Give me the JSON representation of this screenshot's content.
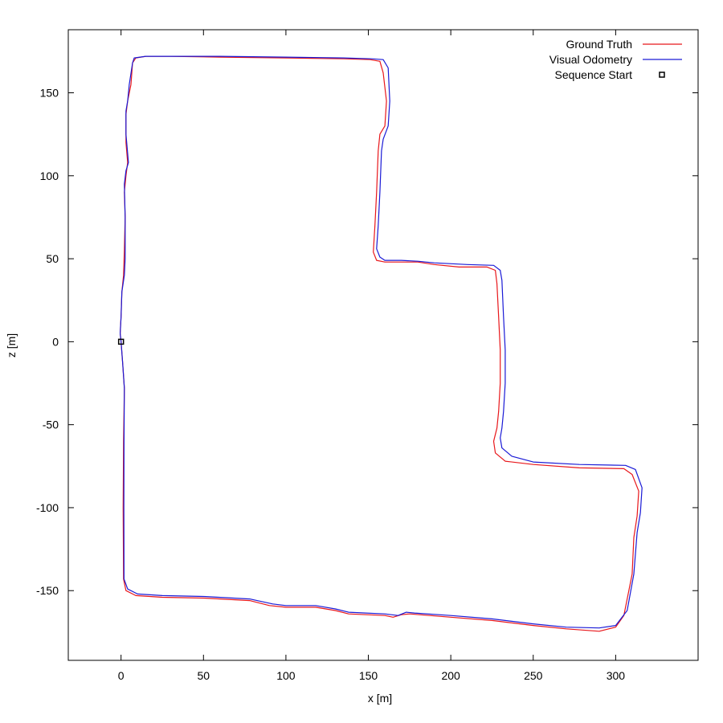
{
  "chart_data": {
    "type": "line",
    "title": "",
    "xlabel": "x [m]",
    "ylabel": "z [m]",
    "xlim": [
      -32,
      350
    ],
    "ylim": [
      -192,
      188
    ],
    "x_ticks": [
      0,
      50,
      100,
      150,
      200,
      250,
      300
    ],
    "y_ticks": [
      150,
      100,
      50,
      0,
      -50,
      -100,
      -150
    ],
    "grid": false,
    "legend_position": "top-right",
    "series": [
      {
        "name": "Ground Truth",
        "color": "#e8171b",
        "points": [
          [
            0,
            0
          ],
          [
            1,
            -13
          ],
          [
            2,
            -28
          ],
          [
            1.5,
            -60
          ],
          [
            1.3,
            -100
          ],
          [
            1.5,
            -143
          ],
          [
            3,
            -150
          ],
          [
            9,
            -153
          ],
          [
            25,
            -154
          ],
          [
            50,
            -154.5
          ],
          [
            78,
            -156
          ],
          [
            90,
            -159
          ],
          [
            100,
            -160
          ],
          [
            118,
            -160
          ],
          [
            130,
            -162
          ],
          [
            138,
            -164
          ],
          [
            160,
            -165
          ],
          [
            165,
            -166
          ],
          [
            170,
            -164.5
          ],
          [
            175,
            -164
          ],
          [
            200,
            -166
          ],
          [
            225,
            -168
          ],
          [
            250,
            -171
          ],
          [
            270,
            -173
          ],
          [
            290,
            -174.5
          ],
          [
            300,
            -172
          ],
          [
            305,
            -165
          ],
          [
            310,
            -140
          ],
          [
            311,
            -118
          ],
          [
            313,
            -105
          ],
          [
            314,
            -90
          ],
          [
            310,
            -80
          ],
          [
            305,
            -76.5
          ],
          [
            278,
            -76
          ],
          [
            250,
            -74
          ],
          [
            233,
            -72
          ],
          [
            227,
            -67
          ],
          [
            226,
            -60
          ],
          [
            228,
            -52
          ],
          [
            229,
            -42
          ],
          [
            230,
            -25
          ],
          [
            230,
            -5
          ],
          [
            229,
            15
          ],
          [
            228,
            35
          ],
          [
            227,
            43
          ],
          [
            222,
            45
          ],
          [
            205,
            45
          ],
          [
            190,
            46.5
          ],
          [
            180,
            48
          ],
          [
            170,
            48
          ],
          [
            160,
            48
          ],
          [
            155,
            49
          ],
          [
            153,
            54
          ],
          [
            154,
            70
          ],
          [
            155,
            90
          ],
          [
            156,
            115
          ],
          [
            157,
            125
          ],
          [
            160,
            130
          ],
          [
            161,
            145
          ],
          [
            159,
            162
          ],
          [
            157,
            169
          ],
          [
            151,
            170
          ],
          [
            135,
            170.5
          ],
          [
            100,
            171
          ],
          [
            60,
            171.5
          ],
          [
            30,
            172
          ],
          [
            15,
            172
          ],
          [
            9,
            171
          ],
          [
            7,
            168
          ],
          [
            6,
            155
          ],
          [
            4,
            145
          ],
          [
            3,
            137
          ],
          [
            3,
            120
          ],
          [
            4,
            108
          ],
          [
            3,
            100
          ],
          [
            2,
            90
          ],
          [
            2.5,
            75
          ],
          [
            2,
            55
          ],
          [
            1.5,
            40
          ],
          [
            0.5,
            30
          ],
          [
            0,
            15
          ],
          [
            -0.5,
            5
          ],
          [
            0,
            0
          ]
        ]
      },
      {
        "name": "Visual Odometry",
        "color": "#1a1ad6",
        "points": [
          [
            0,
            0
          ],
          [
            1,
            -13
          ],
          [
            2,
            -28
          ],
          [
            1.8,
            -60
          ],
          [
            1.7,
            -100
          ],
          [
            1.8,
            -143
          ],
          [
            4,
            -149
          ],
          [
            10,
            -152
          ],
          [
            25,
            -153
          ],
          [
            50,
            -153.5
          ],
          [
            78,
            -155
          ],
          [
            92,
            -158
          ],
          [
            100,
            -159
          ],
          [
            118,
            -159
          ],
          [
            130,
            -161
          ],
          [
            138,
            -163
          ],
          [
            160,
            -164
          ],
          [
            168,
            -165
          ],
          [
            173,
            -163
          ],
          [
            178,
            -163.5
          ],
          [
            200,
            -165
          ],
          [
            225,
            -167
          ],
          [
            250,
            -170
          ],
          [
            270,
            -172
          ],
          [
            290,
            -172.5
          ],
          [
            300,
            -171
          ],
          [
            307,
            -162
          ],
          [
            311,
            -140
          ],
          [
            313,
            -115
          ],
          [
            315,
            -103
          ],
          [
            316,
            -88
          ],
          [
            312,
            -77
          ],
          [
            306,
            -74.5
          ],
          [
            278,
            -74
          ],
          [
            250,
            -72.5
          ],
          [
            237,
            -69
          ],
          [
            231,
            -64
          ],
          [
            230,
            -58
          ],
          [
            231,
            -52
          ],
          [
            232,
            -42
          ],
          [
            233,
            -25
          ],
          [
            233,
            -5
          ],
          [
            232,
            15
          ],
          [
            231,
            37
          ],
          [
            230,
            43
          ],
          [
            226,
            46
          ],
          [
            210,
            46.5
          ],
          [
            190,
            47.5
          ],
          [
            180,
            48.5
          ],
          [
            170,
            49
          ],
          [
            160,
            49
          ],
          [
            157,
            51
          ],
          [
            155,
            56
          ],
          [
            156,
            70
          ],
          [
            157,
            90
          ],
          [
            158,
            115
          ],
          [
            159,
            122
          ],
          [
            162,
            130
          ],
          [
            163,
            145
          ],
          [
            162,
            165
          ],
          [
            159,
            170
          ],
          [
            152,
            170.5
          ],
          [
            135,
            171
          ],
          [
            100,
            171.5
          ],
          [
            60,
            172
          ],
          [
            30,
            172
          ],
          [
            15,
            172
          ],
          [
            8,
            171
          ],
          [
            7,
            168
          ],
          [
            5,
            155
          ],
          [
            4,
            145
          ],
          [
            3,
            139
          ],
          [
            3,
            125
          ],
          [
            4.5,
            108
          ],
          [
            3,
            103
          ],
          [
            2,
            95
          ],
          [
            2.5,
            75
          ],
          [
            2.5,
            50
          ],
          [
            2,
            40
          ],
          [
            0.5,
            30
          ],
          [
            0,
            15
          ],
          [
            -0.5,
            5
          ],
          [
            0,
            0
          ]
        ]
      }
    ],
    "markers": [
      {
        "name": "Sequence Start",
        "shape": "square",
        "x": 0,
        "y": 0,
        "color": "#000000"
      }
    ]
  }
}
